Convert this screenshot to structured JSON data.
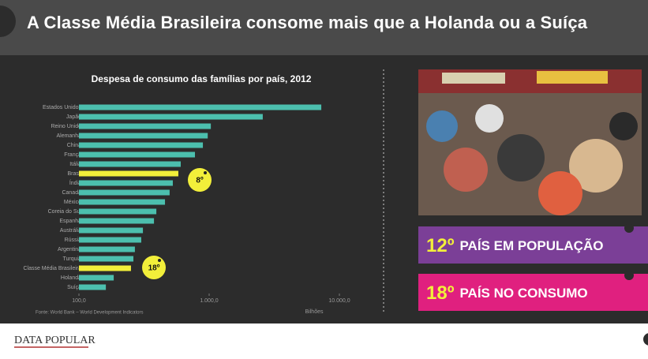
{
  "header": {
    "title": "A Classe Média Brasileira consome mais que a Holanda ou a Suíça"
  },
  "chart_data": {
    "type": "bar",
    "orientation": "horizontal",
    "title": "Despesa de consumo das famílias por país, 2012",
    "categories": [
      "Estados Unidos",
      "Japão",
      "Reino Unido",
      "Alemanha",
      "China",
      "França",
      "Itália",
      "Brasil",
      "Índia",
      "Canadá",
      "México",
      "Coreia do Sul",
      "Espanha",
      "Austrália",
      "Rússia",
      "Argentina",
      "Turquia",
      "Classe Média Brasileira",
      "Holanda",
      "Suíça"
    ],
    "values": [
      7260,
      2580,
      1030,
      975,
      895,
      778,
      605,
      580,
      526,
      497,
      458,
      393,
      377,
      310,
      301,
      269,
      262,
      251,
      185,
      161
    ],
    "colors": [
      "#4cbfae",
      "#4cbfae",
      "#4cbfae",
      "#4cbfae",
      "#4cbfae",
      "#4cbfae",
      "#4cbfae",
      "#f2ef3a",
      "#4cbfae",
      "#4cbfae",
      "#4cbfae",
      "#4cbfae",
      "#4cbfae",
      "#4cbfae",
      "#4cbfae",
      "#4cbfae",
      "#4cbfae",
      "#f2ef3a",
      "#4cbfae",
      "#4cbfae"
    ],
    "log_scale": true,
    "xlim": [
      100,
      10000
    ],
    "xticks": [
      {
        "value": 100,
        "label": "100,0"
      },
      {
        "value": 1000,
        "label": "1.000,0"
      },
      {
        "value": 10000,
        "label": "10.000,0"
      }
    ],
    "x_label": "Bilhões",
    "source": "Fonte: World Bank – World Development Indicators",
    "annotations": [
      "8º",
      "18º"
    ]
  },
  "cards": [
    {
      "highlight": "12º",
      "text": "PAÍS EM POPULAÇÃO",
      "color": "#7b3f97"
    },
    {
      "highlight": "18º",
      "text": "PAÍS NO CONSUMO",
      "color": "#e0207f"
    }
  ],
  "footer": {
    "logo": "DATA POPULAR"
  }
}
